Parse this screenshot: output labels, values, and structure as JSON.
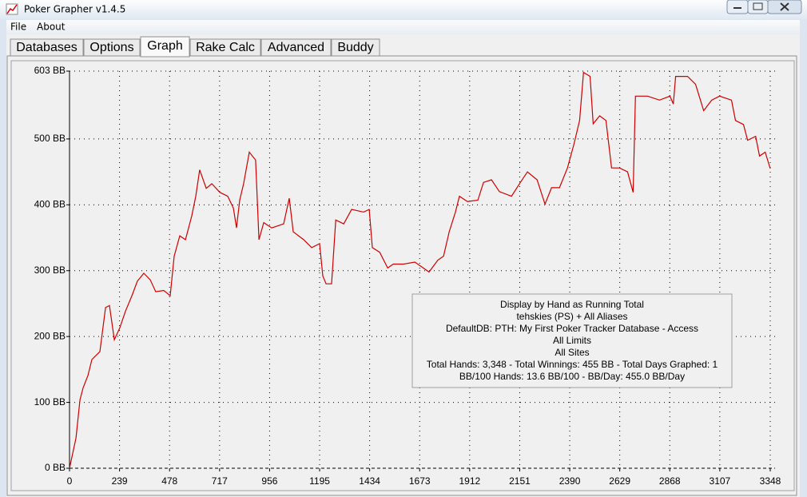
{
  "window": {
    "title": "Poker Grapher v1.4.5"
  },
  "menu": [
    "File",
    "About"
  ],
  "tabs": [
    "Databases",
    "Options",
    "Graph",
    "Rake Calc",
    "Advanced",
    "Buddy"
  ],
  "chart_data": {
    "type": "line",
    "annotations": [
      "Display by Hand as Running Total",
      "tehskies (PS) + All Aliases",
      "DefaultDB: PTH: My First Poker Tracker Database - Access",
      "All Limits",
      "All Sites",
      "Total Hands: 3,348 - Total Winnings: 455 BB - Total Days Graphed: 1",
      "BB/100 Hands: 13.6 BB/100 - BB/Day: 455.0 BB/Day"
    ],
    "x": [
      0,
      31,
      50,
      65,
      88,
      107,
      145,
      172,
      191,
      214,
      240,
      267,
      298,
      324,
      355,
      386,
      412,
      450,
      481,
      500,
      527,
      554,
      584,
      603,
      622,
      653,
      680,
      718,
      756,
      783,
      798,
      813,
      832,
      859,
      889,
      905,
      928,
      966,
      1023,
      1050,
      1069,
      1119,
      1157,
      1195,
      1210,
      1226,
      1252,
      1272,
      1310,
      1348,
      1405,
      1432,
      1447,
      1482,
      1520,
      1547,
      1596,
      1650,
      1718,
      1760,
      1787,
      1814,
      1844,
      1863,
      1901,
      1951,
      1978,
      2016,
      2054,
      2112,
      2150,
      2188,
      2234,
      2272,
      2303,
      2341,
      2379,
      2410,
      2437,
      2456,
      2487,
      2502,
      2533,
      2563,
      2590,
      2628,
      2666,
      2693,
      2704,
      2762,
      2819,
      2869,
      2885,
      2896,
      2953,
      2991,
      3030,
      3068,
      3106,
      3163,
      3182,
      3220,
      3240,
      3278,
      3297,
      3324,
      3348
    ],
    "series": [
      {
        "color": "#cc0000",
        "values": [
          0,
          46,
          104,
          122,
          141,
          165,
          177,
          244,
          247,
          195,
          213,
          238,
          262,
          284,
          296,
          286,
          268,
          270,
          262,
          322,
          353,
          347,
          383,
          413,
          453,
          425,
          432,
          419,
          413,
          395,
          365,
          407,
          432,
          480,
          468,
          347,
          373,
          365,
          371,
          410,
          359,
          347,
          335,
          341,
          292,
          280,
          280,
          377,
          371,
          393,
          389,
          393,
          335,
          328,
          304,
          310,
          310,
          313,
          298,
          316,
          322,
          359,
          389,
          413,
          405,
          407,
          434,
          438,
          420,
          413,
          432,
          450,
          438,
          401,
          426,
          426,
          456,
          492,
          528,
          601,
          595,
          523,
          535,
          528,
          456,
          456,
          450,
          419,
          565,
          565,
          559,
          565,
          553,
          595,
          595,
          583,
          543,
          559,
          565,
          559,
          528,
          522,
          498,
          504,
          474,
          480,
          455
        ]
      }
    ],
    "xlim": [
      0,
      3348
    ],
    "ylim": [
      0,
      603
    ],
    "xticks": [
      0,
      239,
      478,
      717,
      956,
      1195,
      1434,
      1673,
      1912,
      2151,
      2390,
      2629,
      2868,
      3107,
      3348
    ],
    "yticks": [
      {
        "value": 0,
        "label": "0 BB"
      },
      {
        "value": 100,
        "label": "100 BB"
      },
      {
        "value": 200,
        "label": "200 BB"
      },
      {
        "value": 300,
        "label": "300 BB"
      },
      {
        "value": 400,
        "label": "400 BB"
      },
      {
        "value": 500,
        "label": "500 BB"
      },
      {
        "value": 603,
        "label": "603 BB"
      }
    ],
    "grid": true
  }
}
